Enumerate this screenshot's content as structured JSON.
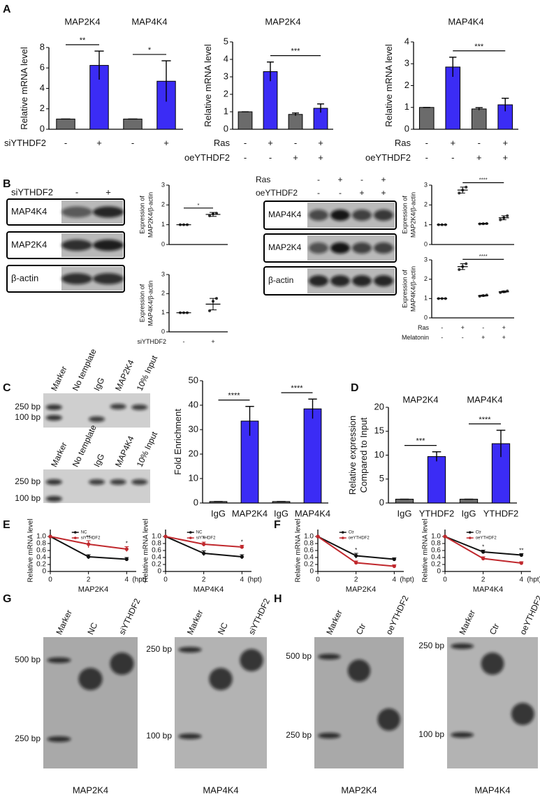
{
  "panel_labels": [
    "A",
    "B",
    "C",
    "D",
    "E",
    "F",
    "G",
    "H"
  ],
  "chart_data": [
    {
      "type": "bar",
      "group_titles": [
        "MAP2K4",
        "MAP4K4"
      ],
      "ylabel": [
        "Relative mRNA level"
      ],
      "values": [
        1,
        6.25,
        1,
        4.7
      ],
      "errors": [
        0,
        1.4,
        0,
        2.0
      ],
      "colors": [
        "#6b6b6b",
        "#3b2cf5",
        "#6b6b6b",
        "#3b2cf5"
      ],
      "ylim": [
        0,
        8
      ],
      "yticks": [
        0,
        2,
        4,
        6,
        8
      ],
      "rows": [
        {
          "label": "siYTHDF2",
          "signs": [
            "-",
            "+",
            "-",
            "+"
          ]
        }
      ],
      "significance": [
        {
          "label": "**",
          "between": [
            0,
            1
          ]
        },
        {
          "label": "*",
          "between": [
            2,
            3
          ]
        }
      ]
    },
    {
      "type": "bar",
      "title": "MAP2K4",
      "ylabel": [
        "Relative mRNA level"
      ],
      "values": [
        1,
        3.3,
        0.85,
        1.2
      ],
      "errors": [
        0,
        0.55,
        0.08,
        0.25
      ],
      "colors": [
        "#6b6b6b",
        "#3b2cf5",
        "#6b6b6b",
        "#3b2cf5"
      ],
      "ylim": [
        0,
        5
      ],
      "yticks": [
        0,
        1,
        2,
        3,
        4,
        5
      ],
      "rows": [
        {
          "label": "Ras",
          "signs": [
            "-",
            "+",
            "-",
            "+"
          ]
        },
        {
          "label": "oeYTHDF2",
          "signs": [
            "-",
            "-",
            "+",
            "+"
          ]
        }
      ],
      "significance": [
        {
          "label": "***",
          "between": [
            1,
            3
          ]
        }
      ]
    },
    {
      "type": "bar",
      "title": "MAP4K4",
      "ylabel": [
        "Relative mRNA level"
      ],
      "values": [
        1,
        2.85,
        0.93,
        1.12
      ],
      "errors": [
        0,
        0.45,
        0.06,
        0.3
      ],
      "colors": [
        "#6b6b6b",
        "#3b2cf5",
        "#6b6b6b",
        "#3b2cf5"
      ],
      "ylim": [
        0,
        4
      ],
      "yticks": [
        0,
        1,
        2,
        3,
        4
      ],
      "rows": [
        {
          "label": "Ras",
          "signs": [
            "-",
            "+",
            "-",
            "+"
          ]
        },
        {
          "label": "oeYTHDF2",
          "signs": [
            "-",
            "-",
            "+",
            "+"
          ]
        }
      ],
      "significance": [
        {
          "label": "***",
          "between": [
            1,
            3
          ]
        }
      ]
    },
    {
      "type": "dot",
      "ylabel": [
        "Expression of",
        "MAP2K4/β-actin"
      ],
      "values": [
        1,
        1.52
      ],
      "errors": [
        0,
        0.1
      ],
      "points": [
        [
          1,
          1,
          1
        ],
        [
          1.45,
          1.55,
          1.58
        ]
      ],
      "ylim": [
        0,
        3
      ],
      "yticks": [
        0,
        1,
        2,
        3
      ],
      "significance": [
        {
          "label": "*",
          "between": [
            0,
            1
          ]
        }
      ]
    },
    {
      "type": "dot",
      "ylabel": [
        "Expression of",
        "MAP4K4/β-actin"
      ],
      "values": [
        1,
        1.45
      ],
      "errors": [
        0,
        0.3
      ],
      "points": [
        [
          1,
          1,
          1
        ],
        [
          1.1,
          1.6,
          1.75
        ]
      ],
      "ylim": [
        0,
        3
      ],
      "yticks": [
        0,
        1,
        2,
        3
      ],
      "rows": [
        {
          "label": "siYTHDF2",
          "signs": [
            "-",
            "+"
          ]
        }
      ]
    },
    {
      "type": "dot",
      "ylabel": [
        "Expression of",
        "MAP2K4/β-actin"
      ],
      "values": [
        1,
        2.75,
        1.05,
        1.35
      ],
      "errors": [
        0,
        0.15,
        0.02,
        0.1
      ],
      "points": [
        [
          1,
          1,
          1
        ],
        [
          2.6,
          2.75,
          2.9
        ],
        [
          1.04,
          1.05,
          1.06
        ],
        [
          1.25,
          1.35,
          1.45
        ]
      ],
      "ylim": [
        0,
        3
      ],
      "yticks": [
        0,
        1,
        2,
        3
      ],
      "significance": [
        {
          "label": "****",
          "between": [
            1,
            3
          ]
        }
      ]
    },
    {
      "type": "dot",
      "ylabel": [
        "Expression of",
        "MAP4K4/β-actin"
      ],
      "values": [
        1,
        2.65,
        1.15,
        1.35
      ],
      "errors": [
        0,
        0.15,
        0.03,
        0.04
      ],
      "points": [
        [
          1,
          1,
          1
        ],
        [
          2.5,
          2.65,
          2.8
        ],
        [
          1.12,
          1.15,
          1.18
        ],
        [
          1.31,
          1.35,
          1.39
        ]
      ],
      "ylim": [
        0,
        3
      ],
      "yticks": [
        0,
        1,
        2,
        3
      ],
      "rows": [
        {
          "label": "Ras",
          "signs": [
            "-",
            "+",
            "-",
            "+"
          ]
        },
        {
          "label": "Melatonin",
          "signs": [
            "-",
            "-",
            "+",
            "+"
          ]
        }
      ],
      "significance": [
        {
          "label": "****",
          "between": [
            1,
            3
          ]
        }
      ]
    },
    {
      "type": "bar",
      "ylabel": [
        "Fold Enrichment"
      ],
      "categories": [
        "IgG",
        "MAP2K4",
        "IgG",
        "MAP4K4"
      ],
      "values": [
        0.6,
        33.5,
        0.6,
        38.5
      ],
      "errors": [
        0,
        6,
        0,
        4
      ],
      "colors": [
        "#6b6b6b",
        "#3b2cf5",
        "#6b6b6b",
        "#3b2cf5"
      ],
      "ylim": [
        0,
        50
      ],
      "yticks": [
        0,
        10,
        20,
        30,
        40,
        50
      ],
      "significance": [
        {
          "label": "****",
          "between": [
            0,
            1
          ]
        },
        {
          "label": "****",
          "between": [
            2,
            3
          ]
        }
      ]
    },
    {
      "type": "bar",
      "group_titles": [
        "MAP2K4",
        "MAP4K4"
      ],
      "ylabel": [
        "Relative expression",
        "Compared to Input"
      ],
      "categories": [
        "IgG",
        "YTHDF2",
        "IgG",
        "YTHDF2"
      ],
      "values": [
        0.8,
        9.7,
        0.8,
        12.4
      ],
      "errors": [
        0,
        1,
        0,
        2.8
      ],
      "colors": [
        "#6b6b6b",
        "#3b2cf5",
        "#6b6b6b",
        "#3b2cf5"
      ],
      "ylim": [
        0,
        20
      ],
      "yticks": [
        0,
        5,
        10,
        15,
        20
      ],
      "significance": [
        {
          "label": "***",
          "between": [
            0,
            1
          ]
        },
        {
          "label": "****",
          "between": [
            2,
            3
          ]
        }
      ]
    },
    {
      "type": "line",
      "ylabel": [
        "Relative mRNA level"
      ],
      "xlabel": "MAP2K4",
      "x_unit": "(hpt)",
      "x": [
        0,
        2,
        4
      ],
      "xlim": [
        0,
        4.5
      ],
      "xticks": [
        0,
        2,
        4
      ],
      "ylim": [
        0,
        1.2
      ],
      "yticks": [
        0,
        0.2,
        0.4,
        0.6,
        0.8,
        {
          "value": 1,
          "label": "1.0"
        }
      ],
      "series": [
        {
          "name": "NC",
          "color": "#111111",
          "values": [
            1,
            0.42,
            0.35
          ],
          "errors": [
            0,
            0.06,
            0.05
          ]
        },
        {
          "name": "siYTHDF2",
          "color": "#c0282d",
          "values": [
            1,
            0.78,
            0.64
          ],
          "errors": [
            0,
            0.1,
            0.07
          ]
        }
      ],
      "significance": [
        null,
        "**",
        "*"
      ]
    },
    {
      "type": "line",
      "ylabel": [
        "Relative mRNA level"
      ],
      "xlabel": "MAP4K4",
      "x_unit": "(hpt)",
      "x": [
        0,
        2,
        4
      ],
      "xlim": [
        0,
        4.5
      ],
      "xticks": [
        0,
        2,
        4
      ],
      "ylim": [
        0,
        1.2
      ],
      "yticks": [
        0,
        0.2,
        0.4,
        0.6,
        0.8,
        {
          "value": 1,
          "label": "1.0"
        }
      ],
      "series": [
        {
          "name": "NC",
          "color": "#111111",
          "values": [
            1,
            0.52,
            0.42
          ],
          "errors": [
            0,
            0.07,
            0.06
          ]
        },
        {
          "name": "siYTHDF2",
          "color": "#c0282d",
          "values": [
            1,
            0.78,
            0.7
          ],
          "errors": [
            0,
            0.06,
            0.05
          ]
        }
      ],
      "significance": [
        null,
        "*",
        "*"
      ]
    },
    {
      "type": "line",
      "ylabel": [
        "Relative mRNA level"
      ],
      "xlabel": "MAP2K4",
      "x_unit": "(hpt)",
      "x": [
        0,
        2,
        4
      ],
      "xlim": [
        0,
        4.5
      ],
      "xticks": [
        0,
        2,
        4
      ],
      "ylim": [
        0,
        1.2
      ],
      "yticks": [
        0,
        0.2,
        0.4,
        0.6,
        0.8,
        {
          "value": 1,
          "label": "1.0"
        }
      ],
      "series": [
        {
          "name": "Ctr",
          "color": "#111111",
          "values": [
            1,
            0.45,
            0.35
          ],
          "errors": [
            0,
            0.07,
            0.04
          ]
        },
        {
          "name": "oeYTHDF2",
          "color": "#c0282d",
          "values": [
            1,
            0.25,
            0.15
          ],
          "errors": [
            0,
            0.05,
            0.04
          ]
        }
      ],
      "significance": [
        null,
        "*",
        null
      ]
    },
    {
      "type": "line",
      "ylabel": [
        "Relative mRNA level"
      ],
      "xlabel": "MAP4K4",
      "x_unit": "(hpt)",
      "x": [
        0,
        2,
        4
      ],
      "xlim": [
        0,
        4.5
      ],
      "xticks": [
        0,
        2,
        4
      ],
      "ylim": [
        0,
        1.2
      ],
      "yticks": [
        0,
        0.2,
        0.4,
        0.6,
        0.8,
        {
          "value": 1,
          "label": "1.0"
        }
      ],
      "series": [
        {
          "name": "Ctr",
          "color": "#111111",
          "values": [
            1,
            0.56,
            0.47
          ],
          "errors": [
            0,
            0.05,
            0.04
          ]
        },
        {
          "name": "oeYTHDF2",
          "color": "#c0282d",
          "values": [
            1,
            0.37,
            0.24
          ],
          "errors": [
            0,
            0.05,
            0.04
          ]
        }
      ],
      "significance": [
        null,
        "*",
        "**"
      ]
    }
  ],
  "blots": [
    {
      "header_rows": [
        {
          "label": "siYTHDF2",
          "signs": [
            "-",
            "+"
          ]
        }
      ],
      "proteins": [
        "MAP4K4",
        "MAP2K4",
        "β-actin"
      ]
    },
    {
      "header_rows": [
        {
          "label": "Ras",
          "signs": [
            "-",
            "+",
            "-",
            "+"
          ]
        },
        {
          "label": "oeYTHDF2",
          "signs": [
            "-",
            "-",
            "+",
            "+"
          ]
        }
      ],
      "proteins": [
        "MAP4K4",
        "MAP2K4",
        "β-actin"
      ]
    }
  ],
  "gels": [
    {
      "lanes": [
        "Marker",
        "No template",
        "IgG",
        "MAP2K4",
        "10% Input"
      ],
      "markers": [
        "250 bp",
        "100 bp"
      ]
    },
    {
      "lanes": [
        "Marker",
        "No template",
        "IgG",
        "MAP4K4",
        "10% Input"
      ],
      "markers": [
        "250 bp",
        "100 bp"
      ]
    },
    {
      "lanes": [
        "Marker",
        "NC",
        "siYTHDF2"
      ],
      "markers": [
        "500 bp",
        "250 bp"
      ],
      "caption": "MAP2K4"
    },
    {
      "lanes": [
        "Marker",
        "NC",
        "siYTHDF2"
      ],
      "markers": [
        "250 bp",
        "100 bp"
      ],
      "caption": "MAP4K4"
    },
    {
      "lanes": [
        "Marker",
        "Ctr",
        "oeYTHDF2"
      ],
      "markers": [
        "500 bp",
        "250 bp"
      ],
      "caption": "MAP2K4"
    },
    {
      "lanes": [
        "Marker",
        "Ctr",
        "oeYTHDF2"
      ],
      "markers": [
        "250 bp",
        "100 bp"
      ],
      "caption": "MAP4K4"
    }
  ]
}
